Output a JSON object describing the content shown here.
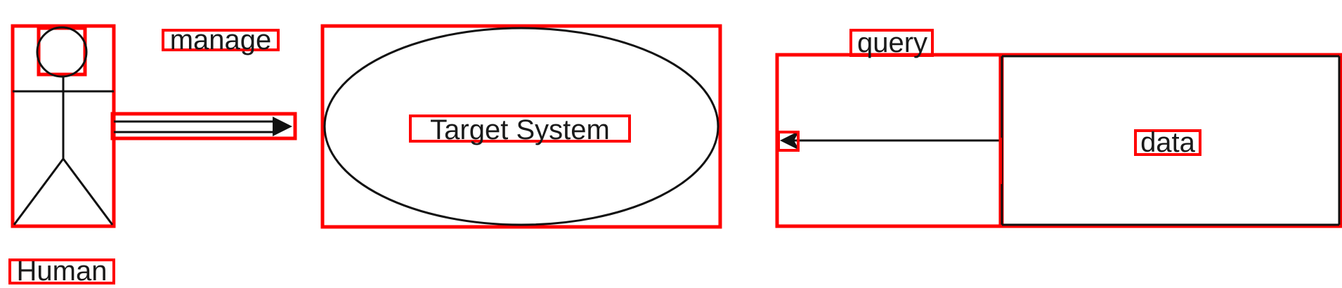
{
  "diagram": {
    "actor": {
      "label": "Human"
    },
    "edge_manage": {
      "label": "manage"
    },
    "system": {
      "label": "Target System"
    },
    "edge_query": {
      "label": "query"
    },
    "datastore": {
      "label": "data"
    }
  },
  "colors": {
    "annotation": "#ff0000",
    "stroke": "#111111",
    "text": "#1a1a1a",
    "background": "#ffffff"
  }
}
